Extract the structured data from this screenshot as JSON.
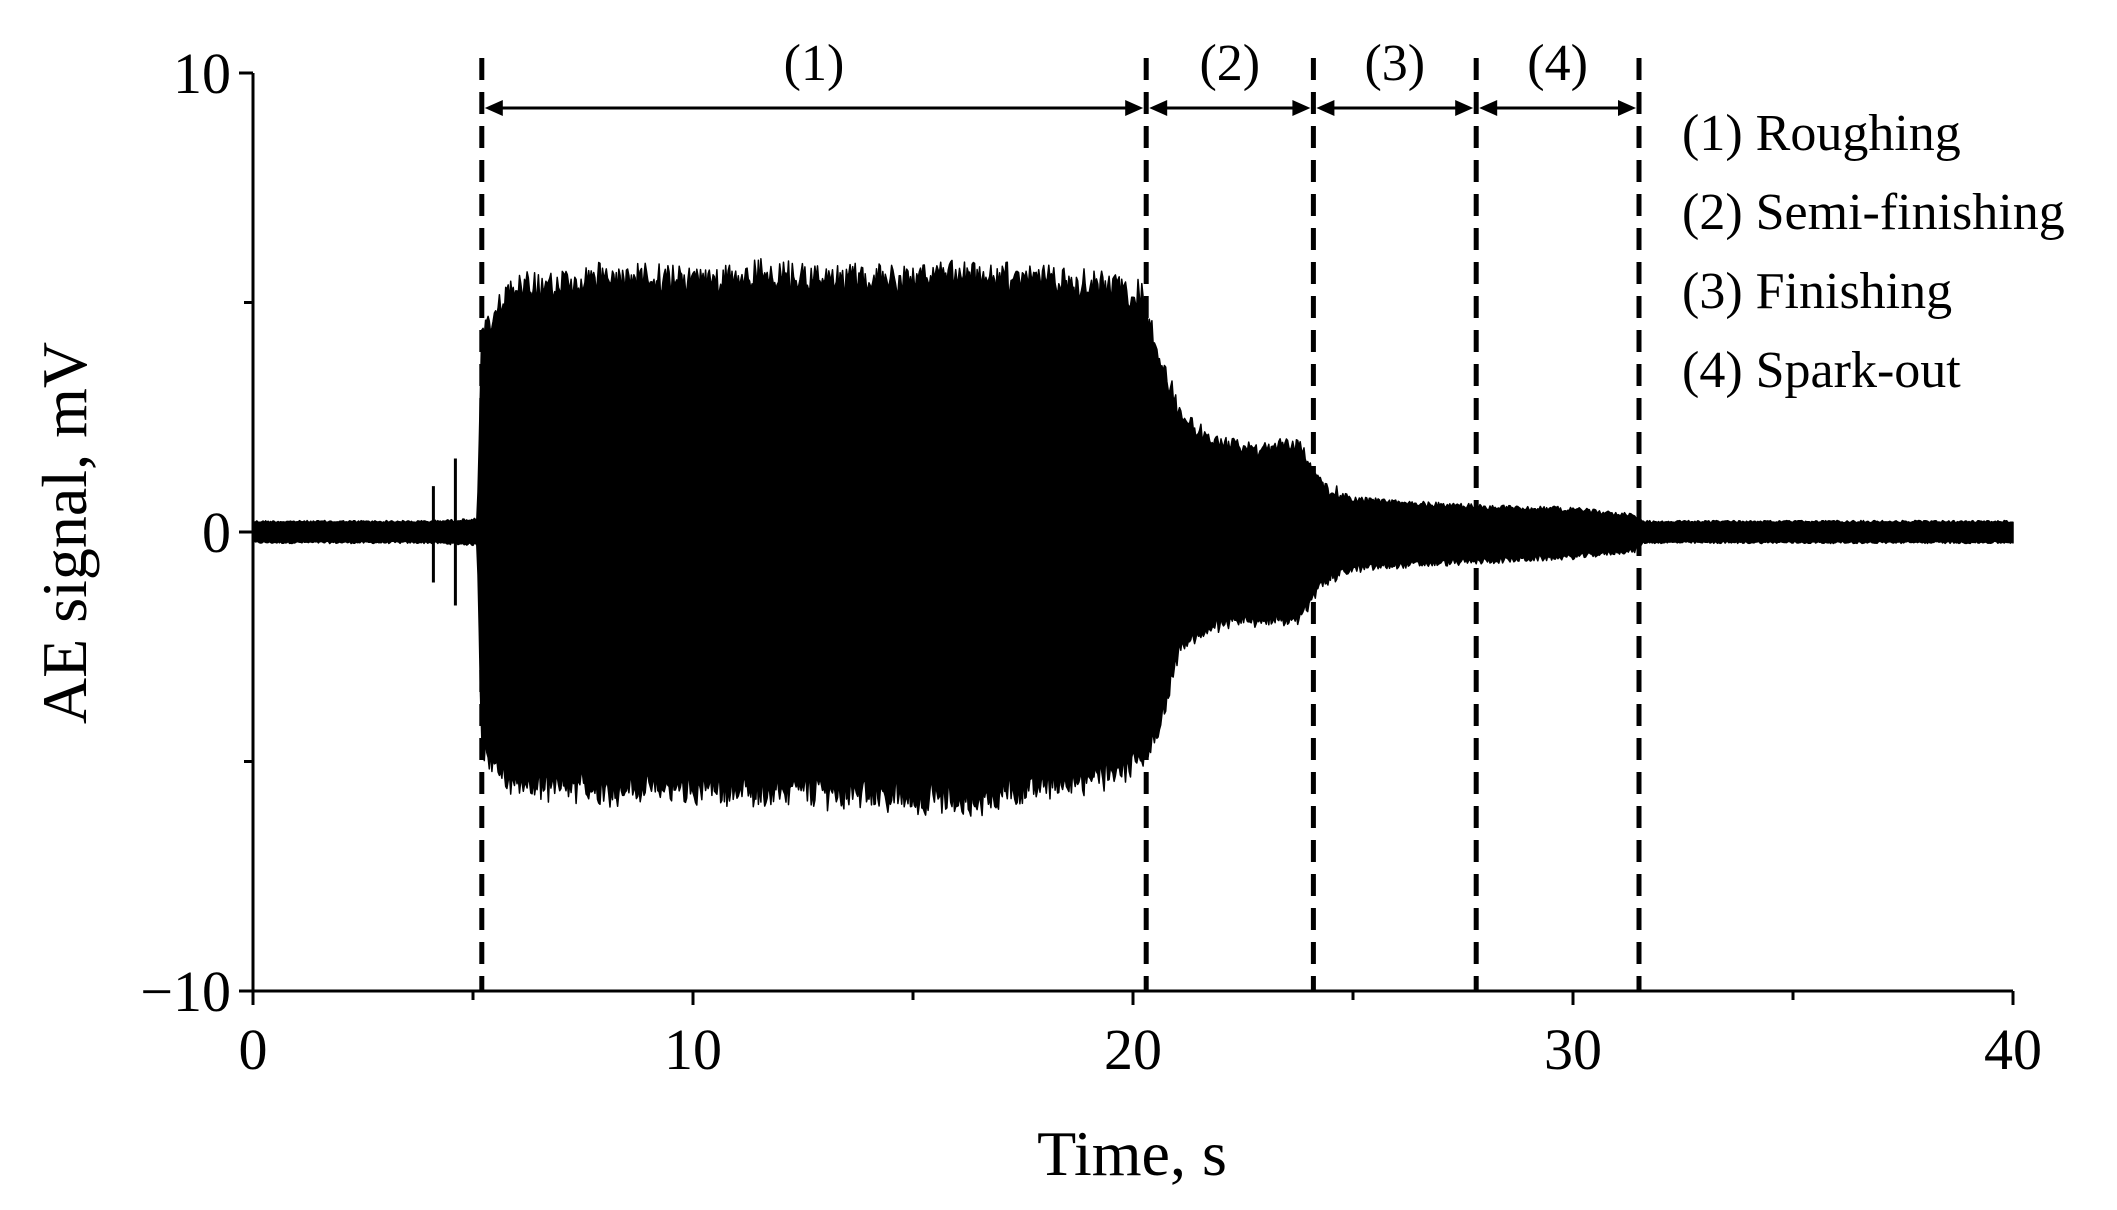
{
  "chart_data": {
    "type": "line",
    "title": "",
    "xlabel": "Time, s",
    "ylabel": "AE signal, mV",
    "xlim": [
      0,
      40
    ],
    "ylim": [
      -10,
      10
    ],
    "x_ticks": [
      0,
      10,
      20,
      30,
      40
    ],
    "x_tick_labels": [
      "0",
      "10",
      "20",
      "30",
      "40"
    ],
    "y_ticks": [
      -10,
      0,
      10
    ],
    "y_tick_labels": [
      "−10",
      "0",
      "10"
    ],
    "grid": false,
    "line_color": "#000000",
    "signal_envelope": {
      "x": [
        0,
        4.0,
        5.1,
        5.2,
        5.8,
        8,
        10,
        12,
        14,
        16,
        18,
        19.5,
        20.2,
        20.6,
        21.1,
        22,
        23,
        23.8,
        24.3,
        25,
        26,
        27,
        28,
        30,
        31.4,
        31.6,
        35,
        40
      ],
      "upper": [
        0.25,
        0.25,
        0.3,
        4.5,
        5.6,
        5.8,
        5.8,
        5.9,
        5.8,
        5.9,
        5.8,
        5.6,
        5.4,
        4.0,
        2.6,
        2.0,
        1.9,
        2.0,
        1.0,
        0.8,
        0.7,
        0.65,
        0.6,
        0.55,
        0.4,
        0.25,
        0.25,
        0.25
      ],
      "lower": [
        -0.25,
        -0.25,
        -0.3,
        -4.8,
        -5.8,
        -5.9,
        -5.9,
        -5.9,
        -6.0,
        -6.2,
        -5.8,
        -5.6,
        -5.3,
        -4.5,
        -2.6,
        -2.1,
        -2.0,
        -2.0,
        -1.1,
        -0.9,
        -0.8,
        -0.75,
        -0.7,
        -0.6,
        -0.45,
        -0.25,
        -0.25,
        -0.25
      ]
    },
    "spikes": [
      {
        "x": 4.1,
        "top": 1.0,
        "bottom": -1.1
      },
      {
        "x": 4.6,
        "top": 1.6,
        "bottom": -1.6
      }
    ],
    "phase_boundaries": [
      5.2,
      20.3,
      24.1,
      27.8,
      31.5
    ],
    "phases": [
      {
        "label": "(1)",
        "start": 5.2,
        "end": 20.3
      },
      {
        "label": "(2)",
        "start": 20.3,
        "end": 24.1
      },
      {
        "label": "(3)",
        "start": 24.1,
        "end": 27.8
      },
      {
        "label": "(4)",
        "start": 27.8,
        "end": 31.5
      }
    ],
    "legend": {
      "placement": "top-right",
      "entries": [
        "(1) Roughing",
        "(2) Semi-finishing",
        "(3) Finishing",
        "(4) Spark-out"
      ]
    }
  }
}
